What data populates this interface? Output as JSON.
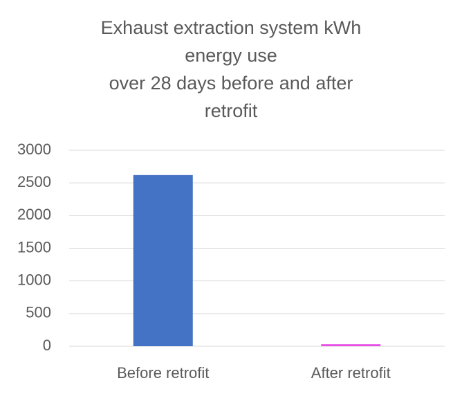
{
  "chart_data": {
    "type": "bar",
    "title": [
      "Exhaust extraction system kWh",
      "energy use",
      "over 28 days before and after",
      "retrofit"
    ],
    "categories": [
      "Before retrofit",
      "After retrofit"
    ],
    "values": [
      2620,
      30
    ],
    "colors": [
      "#4472c4",
      "#e64ee6"
    ],
    "ylim": [
      0,
      3000
    ],
    "yticks": [
      0,
      500,
      1000,
      1500,
      2000,
      2500,
      3000
    ],
    "grid": true
  }
}
